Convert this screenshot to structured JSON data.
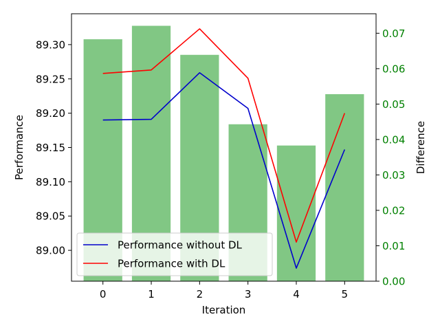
{
  "chart_data": {
    "type": "bar+line",
    "x": [
      0,
      1,
      2,
      3,
      4,
      5
    ],
    "xlabel": "Iteration",
    "ylabel_left": "Performance",
    "ylabel_right": "Difference",
    "ylim_left": [
      88.955,
      89.345
    ],
    "ylim_right": [
      0.0,
      0.0755
    ],
    "yticks_left": [
      "89.00",
      "89.05",
      "89.10",
      "89.15",
      "89.20",
      "89.25",
      "89.30"
    ],
    "yticks_left_values": [
      89.0,
      89.05,
      89.1,
      89.15,
      89.2,
      89.25,
      89.3
    ],
    "yticks_right": [
      "0.00",
      "0.01",
      "0.02",
      "0.03",
      "0.04",
      "0.05",
      "0.06",
      "0.07"
    ],
    "yticks_right_values": [
      0.0,
      0.01,
      0.02,
      0.03,
      0.04,
      0.05,
      0.06,
      0.07
    ],
    "xticks": [
      "0",
      "1",
      "2",
      "3",
      "4",
      "5"
    ],
    "bars": {
      "axis": "right",
      "color": "#4caf50",
      "opacity": 0.7,
      "values": [
        0.0683,
        0.0721,
        0.0639,
        0.0443,
        0.0383,
        0.0528
      ]
    },
    "series": [
      {
        "name": "Performance without DL",
        "color": "#0000cc",
        "axis": "left",
        "values": [
          89.19,
          89.191,
          89.259,
          89.207,
          88.974,
          89.147
        ]
      },
      {
        "name": "Performance with DL",
        "color": "#ff0000",
        "axis": "left",
        "values": [
          89.258,
          89.263,
          89.323,
          89.251,
          89.012,
          89.2
        ]
      }
    ],
    "legend_position": "lower-left",
    "right_axis_color": "#008000"
  }
}
